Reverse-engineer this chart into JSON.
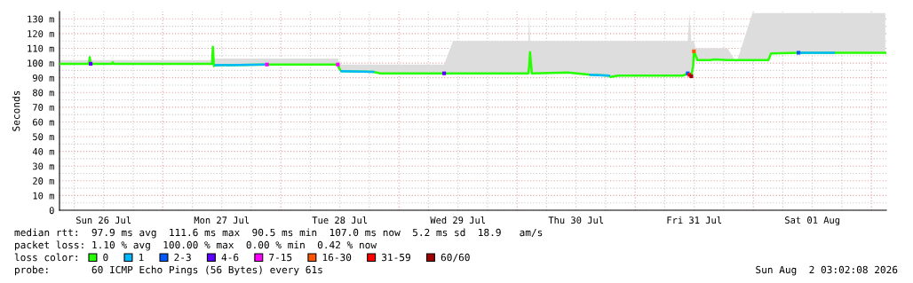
{
  "chart_data": {
    "type": "line",
    "ylabel": "Seconds",
    "x": [
      "2026-07-26T03:15",
      "2026-07-26T09:00",
      "2026-07-26T09:11",
      "2026-07-26T09:22",
      "2026-07-26T13:41",
      "2026-07-26T13:52",
      "2026-07-26T14:02",
      "2026-07-26T21:47",
      "2026-07-27T10:01",
      "2026-07-27T10:12",
      "2026-07-27T10:23",
      "2026-07-27T10:44",
      "2026-07-27T21:11",
      "2026-07-28T11:35",
      "2026-07-28T11:56",
      "2026-07-28T12:18",
      "2026-07-28T18:47",
      "2026-07-28T20:13",
      "2026-07-29T09:11",
      "2026-07-29T10:59",
      "2026-07-30T02:17",
      "2026-07-30T02:28",
      "2026-07-30T02:38",
      "2026-07-30T03:00",
      "2026-07-30T10:23",
      "2026-07-30T14:53",
      "2026-07-30T18:40",
      "2026-07-30T19:01",
      "2026-07-30T20:28",
      "2026-07-31T09:47",
      "2026-07-31T10:41",
      "2026-07-31T11:02",
      "2026-07-31T11:24",
      "2026-07-31T11:46",
      "2026-07-31T11:56",
      "2026-07-31T12:18",
      "2026-07-31T12:40",
      "2026-07-31T15:11",
      "2026-07-31T16:05",
      "2026-07-31T18:47",
      "2026-07-31T20:35",
      "2026-07-31T23:49",
      "2026-08-01T03:04",
      "2026-08-01T03:36",
      "2026-08-01T09:11",
      "2026-08-01T16:23",
      "2026-08-02T02:49"
    ],
    "series": [
      {
        "name": "0",
        "color": "#26ff00",
        "values": [
          99.5,
          99.5,
          104,
          99.5,
          99.5,
          100.5,
          99.5,
          99.5,
          99.5,
          111,
          98,
          98.5,
          99,
          99,
          96,
          94.5,
          94,
          93,
          93,
          93,
          93,
          98,
          107.5,
          93,
          93.5,
          92,
          91.5,
          90.5,
          91.5,
          91.5,
          93,
          92,
          91,
          98,
          108,
          105,
          102,
          102,
          102.5,
          102,
          102,
          102,
          102,
          106.5,
          107,
          107,
          107
        ],
        "lower": [
          99,
          99,
          99,
          99,
          99,
          99,
          99,
          99,
          99,
          99,
          97.5,
          98,
          98.5,
          98.5,
          95.5,
          94,
          93.5,
          92.5,
          92.5,
          92.5,
          92.5,
          92.5,
          92.5,
          92.5,
          93,
          91.5,
          91,
          90,
          91,
          91,
          91,
          91,
          90.5,
          90.5,
          101,
          101,
          101.5,
          101.5,
          102,
          101.5,
          101.5,
          101.5,
          101.5,
          106,
          106.5,
          106.5,
          106.5
        ],
        "upper": [
          102,
          102,
          106,
          102,
          102,
          102,
          102,
          102,
          102,
          112,
          104,
          103,
          103,
          103,
          100,
          99,
          99,
          99,
          99,
          115,
          115,
          134,
          115,
          115,
          115,
          115,
          115,
          115,
          115,
          115,
          115,
          134,
          115,
          115,
          115,
          110,
          110,
          110,
          110,
          110,
          100,
          134,
          134,
          134,
          134,
          134,
          134
        ]
      },
      {
        "name": "1",
        "color": "#00b8ff",
        "values": [
          null,
          null,
          null,
          null,
          null,
          null,
          null,
          null,
          null,
          null,
          null,
          98.5,
          99,
          null,
          null,
          94.5,
          94,
          null,
          null,
          null,
          null,
          null,
          null,
          null,
          null,
          92,
          91.5,
          null,
          null,
          null,
          null,
          null,
          null,
          null,
          null,
          null,
          null,
          null,
          null,
          null,
          null,
          null,
          null,
          null,
          107,
          107,
          null
        ]
      },
      {
        "name": "2-3",
        "color": "#0059ff",
        "type": "scatter",
        "marker": "square",
        "x": [
          "2026-07-31T10:41",
          "2026-08-01T09:11"
        ],
        "values": [
          93,
          107
        ]
      },
      {
        "name": "4-6",
        "color": "#5e00ff",
        "type": "scatter",
        "marker": "square",
        "x": [
          "2026-07-26T09:22",
          "2026-07-29T09:11"
        ],
        "values": [
          99.5,
          93
        ]
      },
      {
        "name": "7-15",
        "color": "#ff00ff",
        "type": "scatter",
        "marker": "square",
        "x": [
          "2026-07-27T21:11",
          "2026-07-28T11:35"
        ],
        "values": [
          99,
          99
        ]
      },
      {
        "name": "16-30",
        "color": "#ff5500",
        "type": "scatter",
        "marker": "square",
        "x": [
          "2026-07-31T11:56"
        ],
        "values": [
          108
        ]
      },
      {
        "name": "31-59",
        "color": "#ff0000",
        "type": "scatter",
        "marker": "square",
        "x": [
          "2026-07-31T11:02"
        ],
        "values": [
          92
        ]
      },
      {
        "name": "60/60",
        "color": "#a10000",
        "type": "scatter",
        "marker": "square",
        "x": [
          "2026-07-31T11:24"
        ],
        "values": [
          91
        ]
      }
    ],
    "xlim": [
      "2026-07-26T03:02",
      "2026-08-02T03:02"
    ],
    "xticks": [
      {
        "value": "2026-07-26T06:00",
        "label": null
      },
      {
        "value": "2026-07-26T12:00",
        "label": "Sun 26 Jul"
      },
      {
        "value": "2026-07-26T18:00",
        "label": null
      },
      {
        "value": "2026-07-27T00:00",
        "label": null
      },
      {
        "value": "2026-07-27T06:00",
        "label": null
      },
      {
        "value": "2026-07-27T12:00",
        "label": "Mon 27 Jul"
      },
      {
        "value": "2026-07-27T18:00",
        "label": null
      },
      {
        "value": "2026-07-28T00:00",
        "label": null
      },
      {
        "value": "2026-07-28T06:00",
        "label": null
      },
      {
        "value": "2026-07-28T12:00",
        "label": "Tue 28 Jul"
      },
      {
        "value": "2026-07-28T18:00",
        "label": null
      },
      {
        "value": "2026-07-29T00:00",
        "label": null
      },
      {
        "value": "2026-07-29T06:00",
        "label": null
      },
      {
        "value": "2026-07-29T12:00",
        "label": "Wed 29 Jul"
      },
      {
        "value": "2026-07-29T18:00",
        "label": null
      },
      {
        "value": "2026-07-30T00:00",
        "label": null
      },
      {
        "value": "2026-07-30T06:00",
        "label": null
      },
      {
        "value": "2026-07-30T12:00",
        "label": "Thu 30 Jul"
      },
      {
        "value": "2026-07-30T18:00",
        "label": null
      },
      {
        "value": "2026-07-31T00:00",
        "label": null
      },
      {
        "value": "2026-07-31T06:00",
        "label": null
      },
      {
        "value": "2026-07-31T12:00",
        "label": "Fri 31 Jul"
      },
      {
        "value": "2026-07-31T18:00",
        "label": null
      },
      {
        "value": "2026-08-01T00:00",
        "label": null
      },
      {
        "value": "2026-08-01T06:00",
        "label": null
      },
      {
        "value": "2026-08-01T12:00",
        "label": "Sat 01 Aug"
      },
      {
        "value": "2026-08-01T18:00",
        "label": null
      },
      {
        "value": "2026-08-02T00:00",
        "label": null
      }
    ],
    "ylim": [
      0,
      135
    ],
    "yticks": [
      0,
      {
        "value": 5,
        "label": null
      },
      {
        "value": 10,
        "label": "10 m"
      },
      {
        "value": 15,
        "label": null
      },
      {
        "value": 20,
        "label": "20 m"
      },
      {
        "value": 25,
        "label": null
      },
      {
        "value": 30,
        "label": "30 m"
      },
      {
        "value": 35,
        "label": null
      },
      {
        "value": 40,
        "label": "40 m"
      },
      {
        "value": 45,
        "label": null
      },
      {
        "value": 50,
        "label": "50 m"
      },
      {
        "value": 55,
        "label": null
      },
      {
        "value": 60,
        "label": "60 m"
      },
      {
        "value": 65,
        "label": null
      },
      {
        "value": 70,
        "label": "70 m"
      },
      {
        "value": 75,
        "label": null
      },
      {
        "value": 80,
        "label": "80 m"
      },
      {
        "value": 85,
        "label": null
      },
      {
        "value": 90,
        "label": "90 m"
      },
      {
        "value": 95,
        "label": null
      },
      {
        "value": 100,
        "label": "100 m"
      },
      {
        "value": 105,
        "label": null
      },
      {
        "value": 110,
        "label": "110 m"
      },
      {
        "value": 115,
        "label": null
      },
      {
        "value": 120,
        "label": "120 m"
      },
      {
        "value": 125,
        "label": null
      },
      {
        "value": 130,
        "label": "130 m"
      }
    ],
    "grid": true,
    "legend": "bottom left",
    "legend_title": "loss color:",
    "marker": "none",
    "line_style": "solid",
    "annotations": [
      "median rtt:  97.9 ms avg  111.6 ms max  90.5 ms min  107.0 ms now  5.2 ms sd  18.9   am/s",
      "packet loss: 1.10 % avg  100.00 % max  0.00 % min  0.42 % now",
      "probe:       60 ICMP Echo Pings (56 Bytes) every 61s",
      "Sun Aug  2 03:02:08 2026"
    ]
  }
}
